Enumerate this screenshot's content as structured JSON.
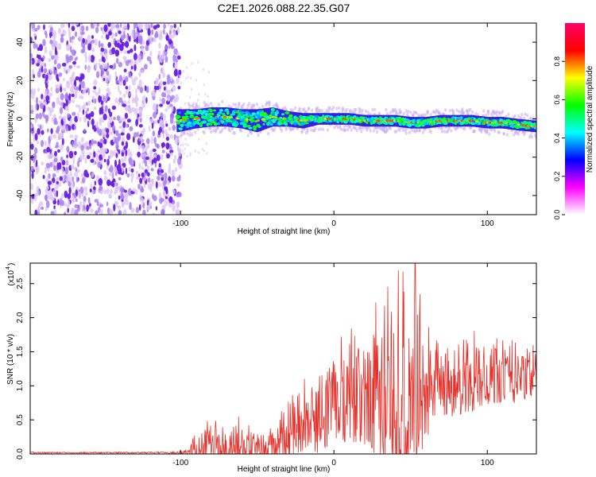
{
  "figure": {
    "title": "C2E1.2026.088.22.35.G07"
  },
  "chart_data": [
    {
      "type": "heatmap",
      "title": "C2E1.2026.088.22.35.G07",
      "xlabel": "Height of straight line (km)",
      "ylabel": "Frequency (Hz)",
      "xlim": [
        -198,
        132
      ],
      "ylim": [
        -50,
        50
      ],
      "x_ticks": [
        -100,
        0,
        100
      ],
      "x_tick_labels": [
        "-100",
        "0",
        "100"
      ],
      "y_ticks": [
        -40,
        -20,
        0,
        20,
        40
      ],
      "y_tick_labels": [
        "-40",
        "-20",
        "0",
        "20",
        "40"
      ],
      "noise_region_x": [
        -198,
        -102
      ],
      "signal_trace": {
        "x": [
          -102,
          -90,
          -80,
          -70,
          -60,
          -50,
          -40,
          -30,
          -20,
          -10,
          0,
          10,
          20,
          30,
          40,
          50,
          60,
          70,
          80,
          90,
          100,
          110,
          120,
          132
        ],
        "center_freq": [
          -1,
          0,
          1,
          1,
          0,
          -1,
          1,
          0,
          -1,
          0,
          0,
          0,
          -1,
          -1,
          -1,
          -2,
          -2,
          -1,
          -1,
          -1,
          -2,
          -2,
          -3,
          -4
        ],
        "half_width": [
          6,
          5,
          5,
          5,
          5,
          6,
          5,
          4,
          4,
          3,
          3,
          3,
          3,
          3,
          3,
          3,
          3,
          3,
          3,
          3,
          3,
          3,
          3,
          3
        ]
      },
      "colorbar": {
        "label": "Normalized spectral amplitude",
        "range": [
          0,
          1
        ],
        "ticks": [
          0.0,
          0.2,
          0.4,
          0.6,
          0.8
        ],
        "tick_labels": [
          "0.0",
          "0.2",
          "0.4",
          "0.6",
          "0.8"
        ],
        "colors": [
          "#ffffff",
          "#ff00ff",
          "#0000ff",
          "#00ffff",
          "#00ff00",
          "#ffff00",
          "#ff0000",
          "#ff0066"
        ]
      }
    },
    {
      "type": "line",
      "xlabel": "Height of straight line (km)",
      "ylabel": "SNR (10 * v/v)",
      "scale_label": "(x10",
      "scale_exponent": "4",
      "xlim": [
        -198,
        132
      ],
      "ylim": [
        0,
        2.8
      ],
      "x_ticks": [
        -100,
        0,
        100
      ],
      "x_tick_labels": [
        "-100",
        "0",
        "100"
      ],
      "y_ticks": [
        0.0,
        0.5,
        1.0,
        1.5,
        2.0,
        2.5
      ],
      "y_tick_labels": [
        "0.0",
        "0.5",
        "1.0",
        "1.5",
        "2.0",
        "2.5"
      ],
      "color": "#e8302a",
      "envelope": {
        "x": [
          -198,
          -110,
          -100,
          -95,
          -92,
          -88,
          -80,
          -70,
          -60,
          -50,
          -40,
          -35,
          -30,
          -25,
          -20,
          -15,
          -10,
          -5,
          0,
          10,
          20,
          30,
          40,
          45,
          50,
          55,
          60,
          70,
          80,
          90,
          100,
          110,
          120,
          132
        ],
        "base": [
          0.02,
          0.02,
          0.02,
          0.03,
          0.1,
          0.12,
          0.15,
          0.18,
          0.15,
          0.12,
          0.12,
          0.25,
          0.35,
          0.4,
          0.5,
          0.55,
          0.6,
          0.7,
          0.75,
          0.85,
          0.9,
          0.9,
          0.85,
          0.8,
          0.8,
          0.85,
          0.95,
          1.0,
          1.05,
          1.1,
          1.15,
          1.15,
          1.1,
          1.2
        ],
        "amplitude": [
          0.01,
          0.01,
          0.02,
          0.05,
          0.25,
          0.35,
          0.45,
          0.55,
          0.4,
          0.3,
          0.3,
          0.6,
          0.7,
          0.7,
          0.75,
          0.8,
          1.0,
          1.0,
          1.05,
          1.1,
          1.3,
          1.6,
          1.9,
          2.0,
          1.9,
          1.6,
          1.2,
          0.9,
          0.8,
          0.8,
          0.7,
          0.65,
          0.6,
          0.55
        ]
      },
      "peak": {
        "x": 53,
        "y": 2.8
      }
    }
  ]
}
